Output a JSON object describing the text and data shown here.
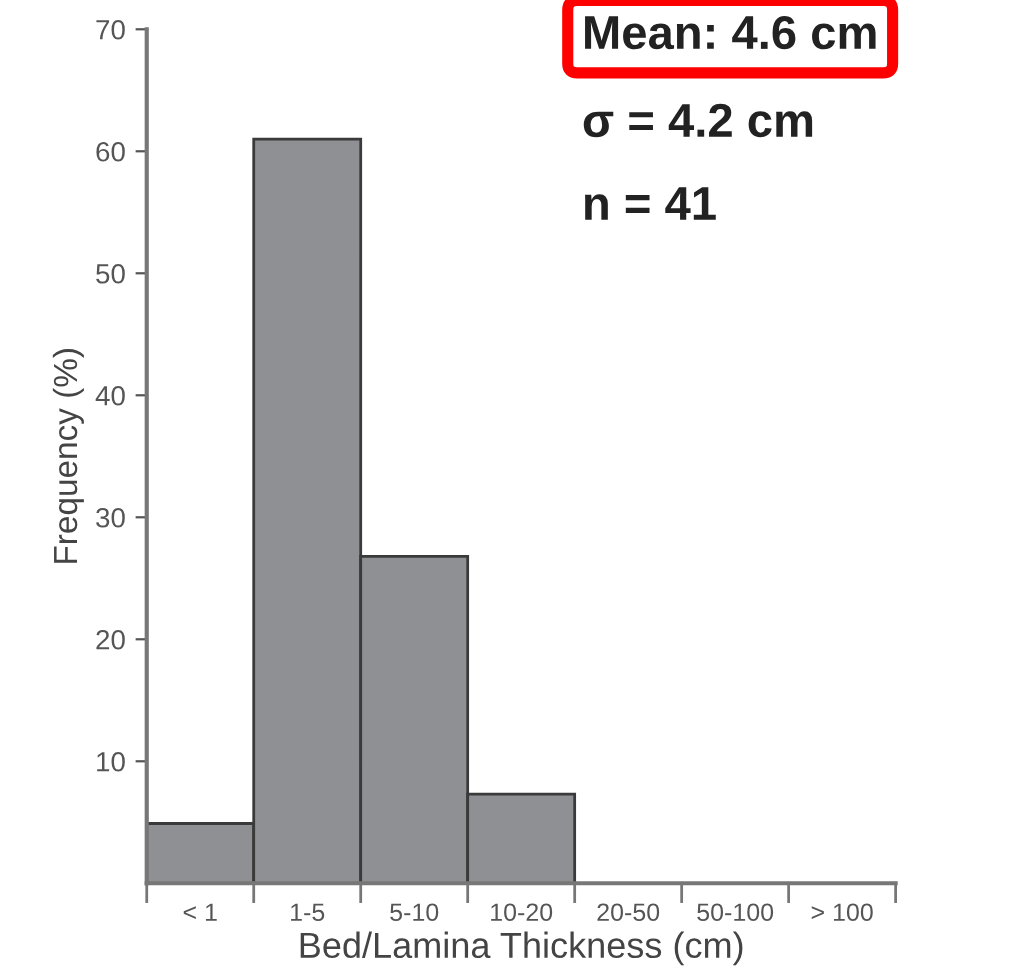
{
  "chart_data": {
    "type": "bar",
    "xlabel": "Bed/Lamina Thickness (cm)",
    "ylabel": "Frequency (%)",
    "categories": [
      "< 1",
      "1-5",
      "5-10",
      "10-20",
      "20-50",
      "50-100",
      "> 100"
    ],
    "values": [
      4.9,
      61,
      26.8,
      7.3,
      0,
      0,
      0
    ],
    "color": "#8f9093",
    "ylim": [
      0,
      70
    ],
    "yticks": [
      10,
      20,
      30,
      40,
      50,
      60,
      70
    ],
    "grid": false,
    "annotations": [
      "Mean: 4.6 cm",
      "σ = 4.2 cm",
      "n = 41"
    ]
  }
}
